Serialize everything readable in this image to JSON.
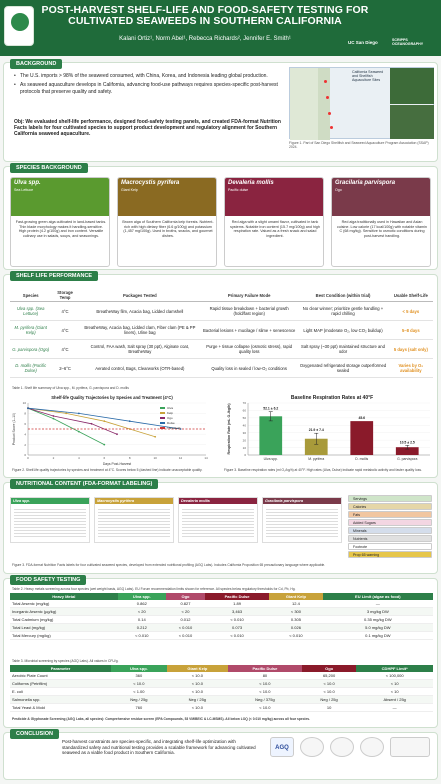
{
  "header": {
    "title_line1": "POST-HARVEST SHELF-LIFE AND FOOD-SAFETY TESTING FOR",
    "title_line2": "CULTIVATED SEAWEEDS IN SOUTHERN CALIFORNIA",
    "authors": "Kalani Ortiz¹, Norm Abel¹, Rebecca Richards², Jennifer E. Smith¹",
    "logo_right_1": "UC San Diego",
    "logo_right_2": "SCRIPPS OCEANOGRAPHY"
  },
  "background": {
    "tag": "BACKGROUND",
    "bullets": [
      "The U.S. imports > 98% of the seaweed consumed, with China, Korea, and Indonesia leading global production.",
      "As seaweed aquaculture develops in California, advancing food-use pathways requires species-specific post-harvest protocols that preserve quality and safety."
    ],
    "objective": "Obj: We evaluated shelf-life performance, designed food-safety testing panels, and created FDA-format Nutrition Facts labels for four cultivated species to support product development and regulatory alignment for Southern California seaweed aquaculture.",
    "map_legend": "California Seaweed and Shellfish Aquaculture Sites",
    "map_caption": "Figure 1. Part of San Diego Shellfish and Seaweed Aquaculture Program Association (SSAP) 2024."
  },
  "species_background": {
    "tag": "SPECIES BACKGROUND",
    "cards": [
      {
        "name": "Ulva spp.",
        "sub": "Sea Lettuce",
        "color": "#5a9a2f",
        "desc": "Fast-growing green alga cultivated in land-based tanks. Thin blade morphology makes it handling-sensitive. High protein (4.2 g/100g) and iron content. Versatile culinary use in salads, soups, and seasonings."
      },
      {
        "name": "Macrocystis pyrifera",
        "sub": "Giant Kelp",
        "color": "#8a6a22",
        "desc": "Brown alga of Southern California kelp forests. Nutrient-rich with high dietary fiber (6.6 g/100g) and potassium (1,457 mg/100g). Used in broths, snacks, and gourmet dishes."
      },
      {
        "name": "Devaleria mollis",
        "sub": "Pacific dulse",
        "color": "#8a2440",
        "desc": "Red alga with a slight umami flavor, cultivated in tank systems. Notable iron content (15.7 mg/100g) and high respiration rate. Valued as a fresh snack and salad ingredient."
      },
      {
        "name": "Gracilaria parvispora",
        "sub": "Ogo",
        "color": "#7a3a4a",
        "desc": "Red alga traditionally used in Hawaiian and Asian cuisine. Low calorie (17 kcal/100g) with notable vitamin C (68 mg/kg). Sensitive to osmotic conditions during post-harvest handling."
      }
    ]
  },
  "shelf_life": {
    "tag": "SHELF LIFE PERFORMANCE",
    "headers": [
      "Species",
      "Storage Temp",
      "Packages Tested",
      "Primary Failure Mode",
      "Best Condition (within trial)",
      "Usable Shelf-Life"
    ],
    "rows": [
      {
        "species": "Ulva spp. (Sea Lettuce)",
        "temp": "4°C",
        "packages": "BreatheWay film, Acacia bag, Lidded clamshell",
        "failure": "Rapid tissue breakdown + bacterial growth (hold/fast region)",
        "best": "No clear winner; prioritize gentle handling + rapid chilling",
        "life": "< 5 days"
      },
      {
        "species": "M. pyrifera (Giant Kelp)",
        "temp": "4°C",
        "packages": "BreatheWay, Acacia bag, Lidded clam, Fiber clam (PE & PP liners), Uline bag",
        "failure": "Bacterial lesions + mucilage / slime + senescence",
        "best": "Light MAP (moderate O₂, low CO₂ buildup)",
        "life": "5–8 days"
      },
      {
        "species": "G. parvispora (Ogo)",
        "temp": "4°C",
        "packages": "Control, FAA wash, Salt spray (30 ppt), Alginate coat, BreatheWay",
        "failure": "Purge + tissue collapse (osmotic stress), rapid quality loss",
        "best": "Salt spray (~30 ppt) maintained structure and odor",
        "life": "5 days (salt only)"
      },
      {
        "species": "D. mollis (Pacific Dulse)",
        "temp": "2–6°C",
        "packages": "Aerated control, Bags, Clearworks (OTR-based)",
        "failure": "Quality loss in sealed / low-O₂ conditions",
        "best": "Oxygenated refrigerated storage outperformed sealed",
        "life": "Varies by O₂ availability"
      }
    ],
    "table_caption": "Table 1. Shelf life summary of Ulva spp., M. pyrifera, G. parvispora and D. mollis"
  },
  "chart_quality": {
    "chart_data": {
      "type": "line",
      "title": "Shelf-life Quality Trajectories by Species and Treatment (4°C)",
      "xlabel": "Days Post-Harvest",
      "ylabel": "Product Score (1–10)",
      "xlim": [
        0,
        14
      ],
      "ylim": [
        0,
        10
      ],
      "series": [
        {
          "name": "Ulva",
          "color": "#3aa35a",
          "x": [
            0,
            2,
            4,
            6
          ],
          "y": [
            9,
            7,
            4.5,
            2
          ]
        },
        {
          "name": "Kelp",
          "color": "#c8a23a",
          "x": [
            0,
            3,
            6,
            8,
            10
          ],
          "y": [
            9,
            8,
            6.5,
            5,
            3.5
          ]
        },
        {
          "name": "Ogo",
          "color": "#8a2a6a",
          "x": [
            0,
            2,
            5,
            7
          ],
          "y": [
            9,
            7.5,
            6,
            4
          ]
        },
        {
          "name": "Dulse",
          "color": "#2a6aa8",
          "x": [
            0,
            4,
            8,
            12
          ],
          "y": [
            9,
            8,
            6.5,
            5
          ]
        },
        {
          "name": "Threshold",
          "color": "#c33",
          "x": [
            0,
            14
          ],
          "y": [
            5,
            5
          ]
        }
      ]
    },
    "caption": "Figure 2. Shelf-life quality trajectories by species and treatment at 4°C. Scores below 5 (dashed line) indicate unacceptable quality."
  },
  "chart_resp": {
    "chart_data": {
      "type": "bar",
      "title": "Baseline Respiration Rates at 40°F",
      "ylabel": "Respiration Rate (mL O₂/kg/h)",
      "categories": [
        "Ulva spp.",
        "M. pyrifera",
        "D. mollis",
        "G. parvispora"
      ],
      "values": [
        52.1,
        21.9,
        45.6,
        10.5
      ],
      "errors": [
        6.2,
        7.4,
        0,
        2.5
      ],
      "labels": [
        "52.1 ± 6.2",
        "21.9 ± 7.4",
        "45.6",
        "10.5 ± 2.5"
      ],
      "colors": [
        "#3aa35a",
        "#a89a3a",
        "#8a1a2a",
        "#8a1a2a"
      ],
      "ylim": [
        0,
        70
      ]
    },
    "caption": "Figure 3. Baseline respiration rates (ml O₂/kg/h) at 40°F. High rates (Ulva, Dulse) indicate rapid metabolic activity and faster quality loss."
  },
  "nutrition": {
    "tag": "NUTRITIONAL CONTENT (FDA-FORMAT LABELING)",
    "labels": [
      {
        "name": "Ulva spp.",
        "color": "#3aa35a"
      },
      {
        "name": "Macrocystis pyrifera",
        "color": "#c8a23a"
      },
      {
        "name": "Devaleria mollis",
        "color": "#8a2440"
      },
      {
        "name": "Gracilaria parvispora",
        "color": "#7a3a4a"
      }
    ],
    "legend_side": [
      "Species",
      "Scientific name"
    ],
    "legend": [
      {
        "text": "Servings",
        "color": "#cfe5c9"
      },
      {
        "text": "Calories",
        "color": "#e5d6a8"
      },
      {
        "text": "Fats",
        "color": "#f1c6a0"
      },
      {
        "text": "Added Sugars",
        "color": "#f3d6e2"
      },
      {
        "text": "Minerals",
        "color": "#d4ddeb"
      },
      {
        "text": "Nutrients",
        "color": "#e0e0e0"
      },
      {
        "text": "Footnote",
        "color": "#ffffff"
      },
      {
        "text": "Prop 65 warning",
        "color": "#e6c64a"
      }
    ],
    "caption": "Figure 3. FDA-format Nutrition Facts labels for four cultivated seaweed species, developed from extended nutritional profiling (AGQ Labs). Includes California Proposition 65 precautionary language where applicable."
  },
  "food_safety": {
    "tag": "FOOD SAFETY TESTING",
    "table2_caption": "Table 2. Heavy metals screening across four species (wet weight basis, AGQ Labs). EU Forum recommendation limits shown for reference. All species below regulatory thresholds for Cd, Pb, Hg.",
    "table2_headers": [
      "Heavy Metal",
      "Ulva spp.",
      "Ogo",
      "Pacific Dulse",
      "Giant Kelp",
      "EU Limit (algae as food)"
    ],
    "table2_header_colors": [
      "#2d7f49",
      "#3aa35a",
      "#b04a6a",
      "#8a1a2a",
      "#c8a23a",
      "#2d7f49"
    ],
    "table2_rows": [
      [
        "Total Arsenic (mg/kg)",
        "0.862",
        "0.827",
        "1.89",
        "12.4",
        "—"
      ],
      [
        "Inorganic Arsenic (µg/kg)",
        "< 20",
        "< 20",
        "3,463",
        "< 300",
        "3 mg/kg DW"
      ],
      [
        "Total Cadmium (mg/kg)",
        "0.14",
        "0.012",
        "< 0.010",
        "0.305",
        "0.35 mg/kg DW"
      ],
      [
        "Total Lead (mg/kg)",
        "0.212",
        "< 0.010",
        "0.073",
        "0.026",
        "5.0 mg/kg DW"
      ],
      [
        "Total Mercury (mg/kg)",
        "< 0.010",
        "< 0.010",
        "< 0.010",
        "< 0.010",
        "0.1 mg/kg DW"
      ]
    ],
    "table3_caption": "Table 3. Microbial screening by species (AGQ Labs). All values in CFU/g.",
    "table3_headers": [
      "Parameter",
      "Ulva spp.",
      "Giant Kelp",
      "Pacific Dulse",
      "Ogo",
      "CDHPF Limit*"
    ],
    "table3_header_colors": [
      "#2d7f49",
      "#3aa35a",
      "#c8a23a",
      "#b04a6a",
      "#8a1a2a",
      "#2d7f49"
    ],
    "table3_rows": [
      [
        "Aerobic Plate Count",
        "360",
        "< 10.0",
        "80",
        "65,200",
        "< 100,000"
      ],
      [
        "Coliforms (Petrifilm)",
        "< 10.0",
        "< 10.0",
        "< 10.0",
        "< 10.0",
        "< 10"
      ],
      [
        "E. coli",
        "< 1.00",
        "< 10.0",
        "< 10.0",
        "< 10.0",
        "< 10"
      ],
      [
        "Salmonella spp.",
        "Neg / 25g",
        "Neg / 25g",
        "Neg / 375g",
        "Neg / 25g",
        "Absent / 25g"
      ],
      [
        "Total Yeast & Mold",
        "760",
        "< 10.0",
        "< 10.0",
        "10",
        "—"
      ]
    ],
    "footnote": "Pesticide & Glyphosate Screening (AGQ Labs, all species): Comprehensive residue screen (EPA Compounds, 53 VMIBEIC & LC-MSMS). All below LOQ (< 0.010 mg/kg) across all four species."
  },
  "conclusion": {
    "tag": "CONCLUSION",
    "text": "Post-harvest constraints are species-specific, and integrating shelf-life optimization with standardized safety and nutritional testing provides a scalable framework for advancing cultivated seaweed as a viable food product in Southern California.",
    "logo_text": "AGQ"
  }
}
